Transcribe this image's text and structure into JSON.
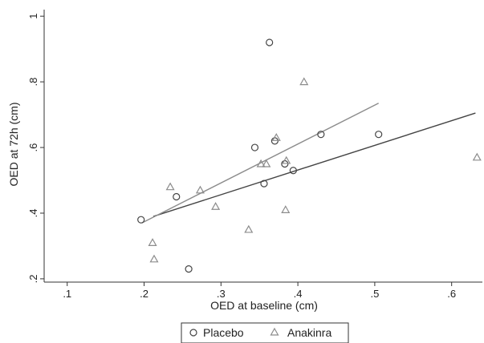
{
  "chart_data": {
    "type": "scatter",
    "xlabel": "OED at baseline (cm)",
    "ylabel": "OED at 72h (cm)",
    "xlim": [
      0.07,
      0.64
    ],
    "ylim": [
      0.19,
      1.02
    ],
    "xticks": [
      0.1,
      0.2,
      0.3,
      0.4,
      0.5,
      0.6
    ],
    "xtick_labels": [
      ".1",
      ".2",
      ".3",
      ".4",
      ".5",
      ".6"
    ],
    "yticks": [
      0.2,
      0.4,
      0.6,
      0.8,
      1.0
    ],
    "ytick_labels": [
      ".2",
      ".4",
      ".6",
      ".8",
      "1"
    ],
    "grid": false,
    "legend_position": "bottom",
    "colors": {
      "placebo": "#444444",
      "anakinra": "#8c8c8c"
    },
    "series": [
      {
        "name": "Placebo",
        "marker": "circle",
        "points": [
          [
            0.196,
            0.38
          ],
          [
            0.242,
            0.45
          ],
          [
            0.258,
            0.23
          ],
          [
            0.344,
            0.6
          ],
          [
            0.356,
            0.49
          ],
          [
            0.363,
            0.92
          ],
          [
            0.37,
            0.62
          ],
          [
            0.383,
            0.55
          ],
          [
            0.394,
            0.53
          ],
          [
            0.43,
            0.64
          ],
          [
            0.505,
            0.64
          ]
        ],
        "fit_line": [
          [
            0.212,
            0.39
          ],
          [
            0.631,
            0.705
          ]
        ]
      },
      {
        "name": "Anakinra",
        "marker": "triangle",
        "points": [
          [
            0.211,
            0.31
          ],
          [
            0.213,
            0.26
          ],
          [
            0.234,
            0.48
          ],
          [
            0.273,
            0.47
          ],
          [
            0.293,
            0.42
          ],
          [
            0.336,
            0.35
          ],
          [
            0.352,
            0.55
          ],
          [
            0.359,
            0.55
          ],
          [
            0.372,
            0.63
          ],
          [
            0.384,
            0.41
          ],
          [
            0.385,
            0.56
          ],
          [
            0.408,
            0.8
          ],
          [
            0.633,
            0.57
          ]
        ],
        "fit_line": [
          [
            0.197,
            0.37
          ],
          [
            0.505,
            0.735
          ]
        ]
      }
    ]
  }
}
